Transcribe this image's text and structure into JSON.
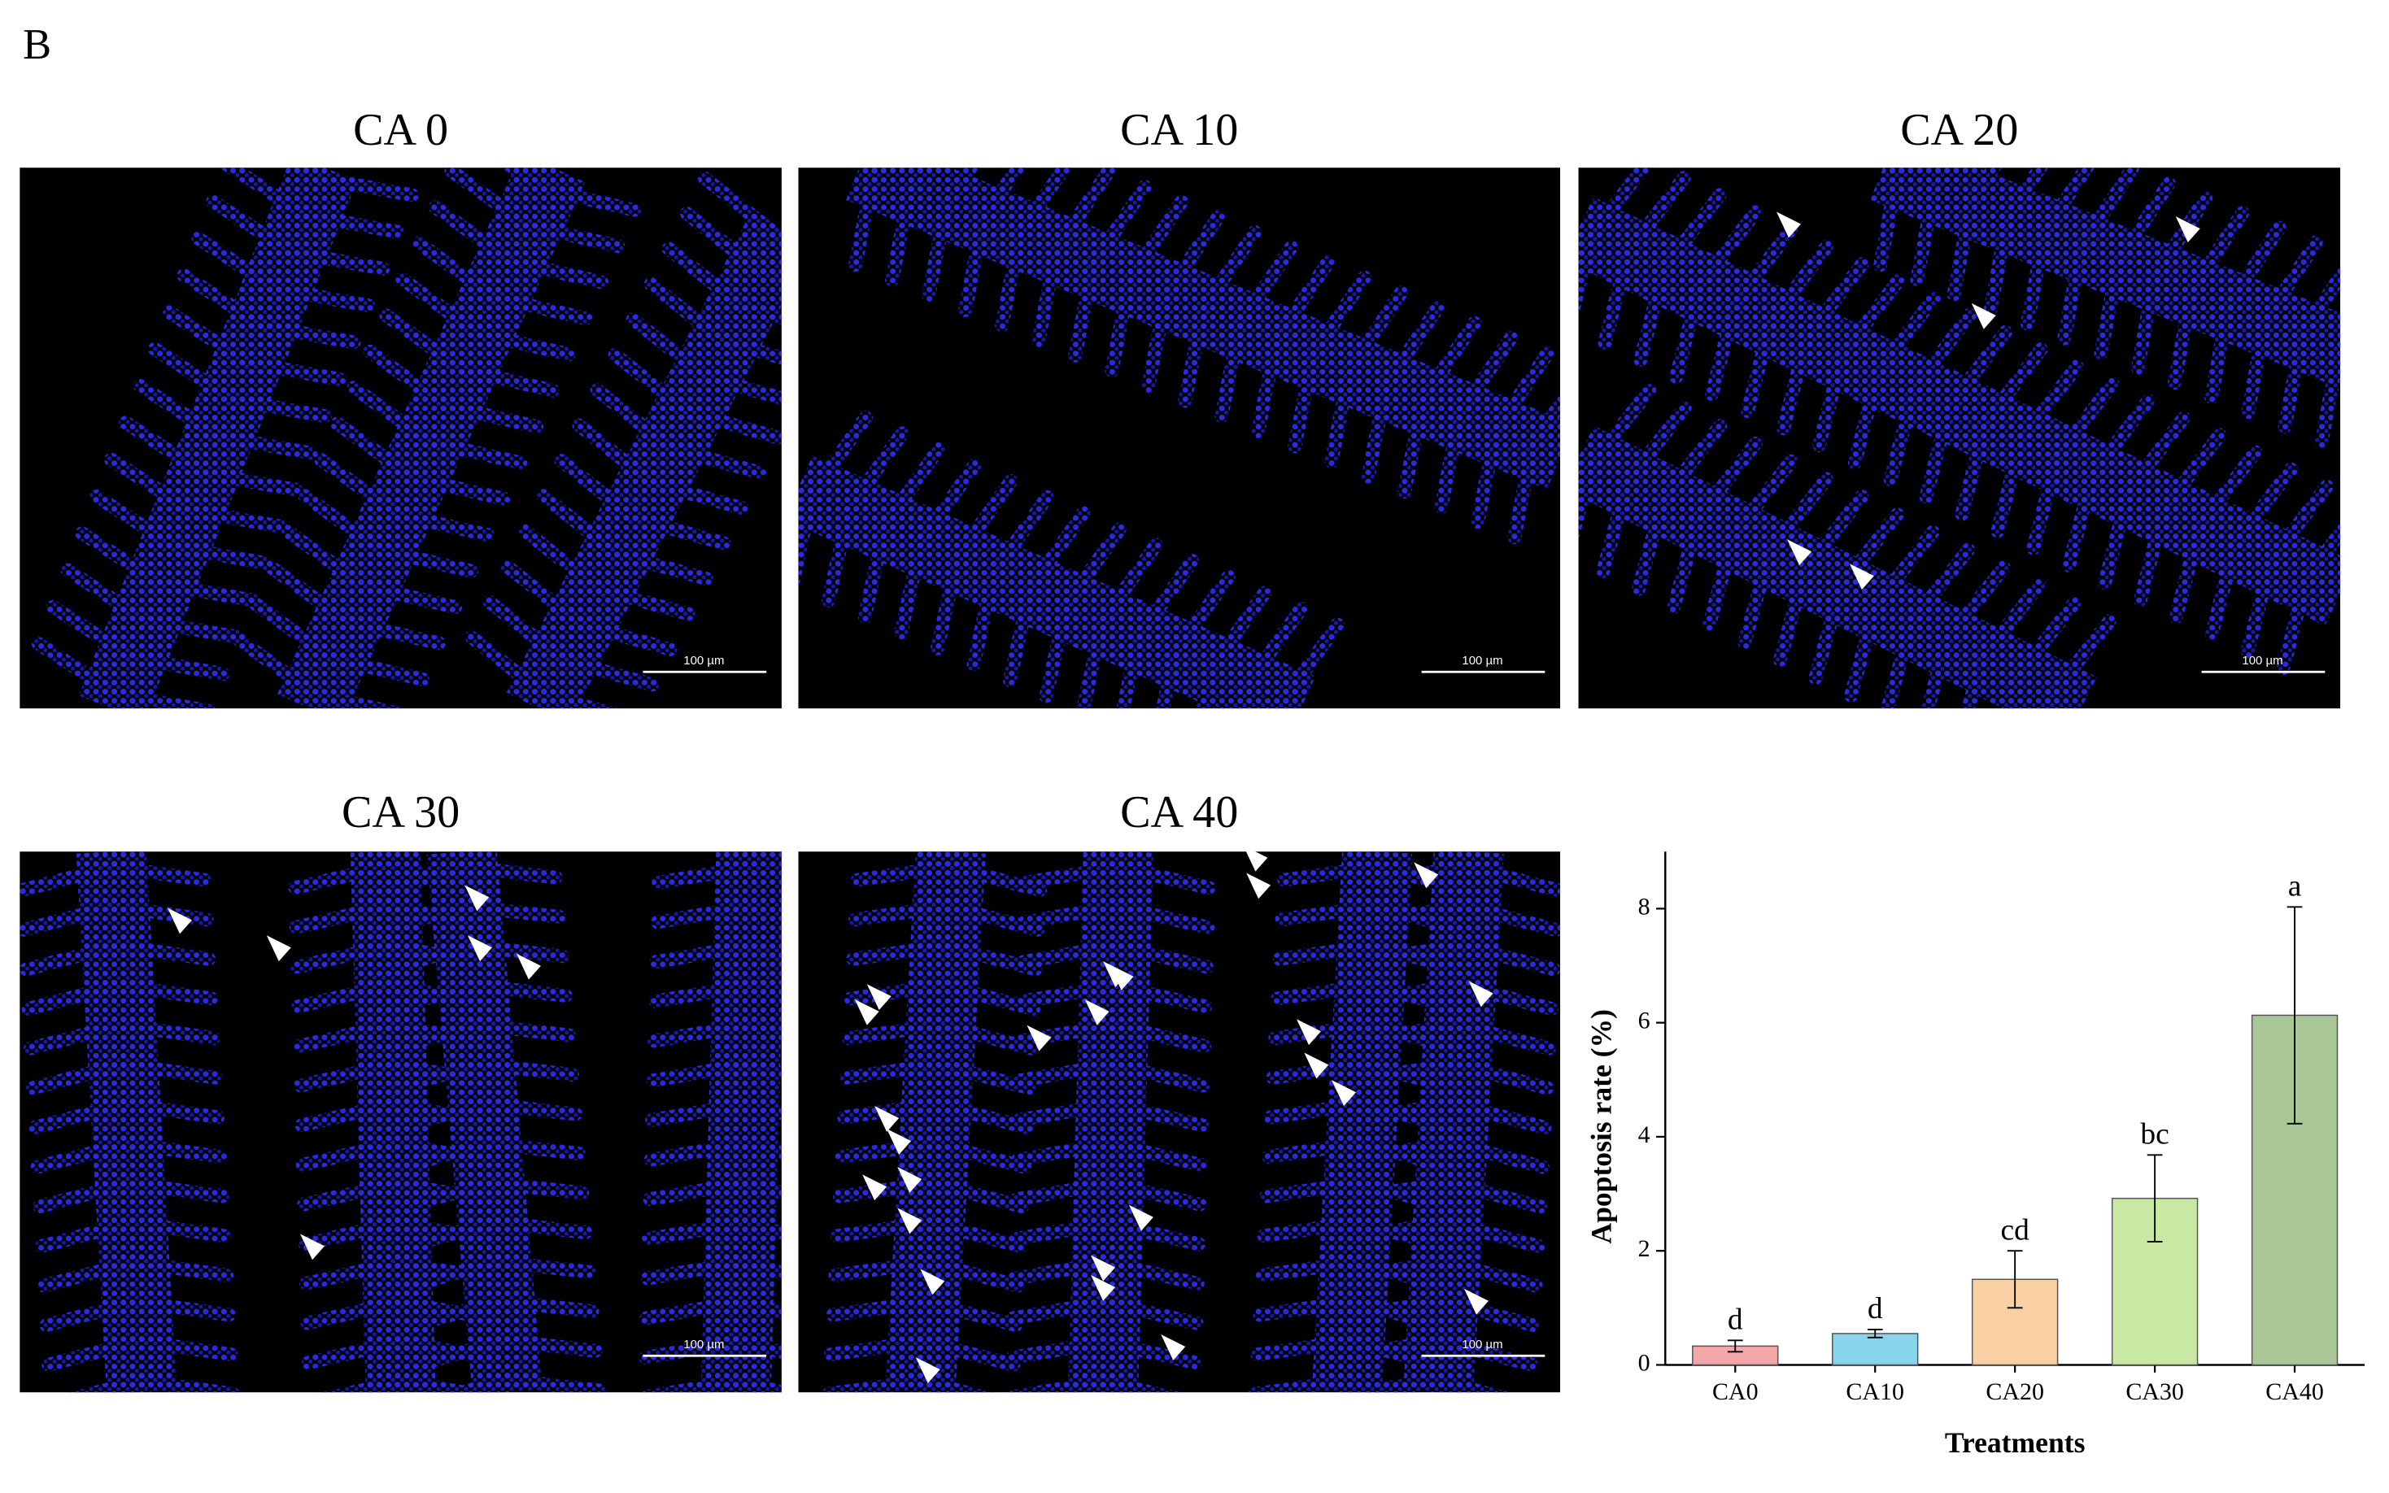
{
  "panel_label": "B",
  "images": [
    {
      "title": "CA 0",
      "scale_bar": "100 µm"
    },
    {
      "title": "CA 10",
      "scale_bar": "100 µm"
    },
    {
      "title": "CA 20",
      "scale_bar": "100 µm"
    },
    {
      "title": "CA 30",
      "scale_bar": "100 µm"
    },
    {
      "title": "CA 40",
      "scale_bar": "100 µm"
    }
  ],
  "chart_data": {
    "type": "bar",
    "categories": [
      "CA0",
      "CA10",
      "CA20",
      "CA30",
      "CA40"
    ],
    "values": [
      0.33,
      0.55,
      1.5,
      2.92,
      6.13
    ],
    "errors": [
      0.1,
      0.07,
      0.5,
      0.76,
      1.9
    ],
    "annotations": [
      "d",
      "d",
      "cd",
      "bc",
      "a"
    ],
    "colors": [
      "#f4a7a9",
      "#86d5ec",
      "#f9d0a4",
      "#c9e8a4",
      "#a9c796"
    ],
    "x_label": "Treatments",
    "y_label": "Apoptosis rate (%)",
    "ylim": [
      0,
      9
    ],
    "yticks": [
      0,
      2,
      4,
      6,
      8
    ]
  }
}
